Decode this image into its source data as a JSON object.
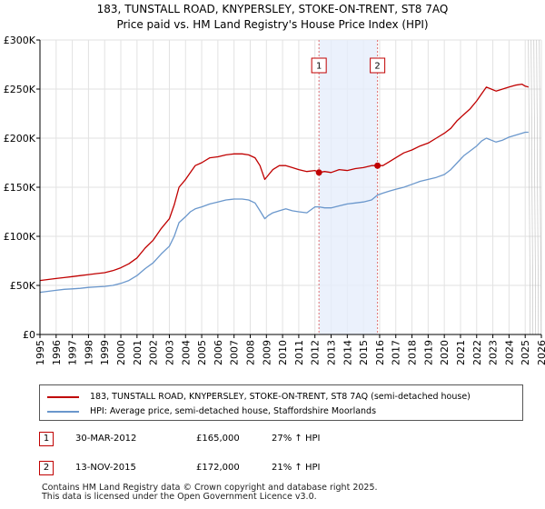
{
  "title": {
    "line1": "183, TUNSTALL ROAD, KNYPERSLEY, STOKE-ON-TRENT, ST8 7AQ",
    "line2": "Price paid vs. HM Land Registry's House Price Index (HPI)"
  },
  "chart_data": {
    "type": "line",
    "xlim": [
      1995,
      2026
    ],
    "ylim": [
      0,
      300000
    ],
    "yticks": [
      0,
      50000,
      100000,
      150000,
      200000,
      250000,
      300000
    ],
    "ytick_labels": [
      "£0",
      "£50K",
      "£100K",
      "£150K",
      "£200K",
      "£250K",
      "£300K"
    ],
    "xticks": [
      1995,
      1996,
      1997,
      1998,
      1999,
      2000,
      2001,
      2002,
      2003,
      2004,
      2005,
      2006,
      2007,
      2008,
      2009,
      2010,
      2011,
      2012,
      2013,
      2014,
      2015,
      2016,
      2017,
      2018,
      2019,
      2020,
      2021,
      2022,
      2023,
      2024,
      2025,
      2026
    ],
    "grid": true,
    "shaded_region": {
      "from": 2012.25,
      "to": 2015.87
    },
    "data_end": 2025.2,
    "series": [
      {
        "name": "183, TUNSTALL ROAD, KNYPERSLEY, STOKE-ON-TRENT, ST8 7AQ (semi-detached house)",
        "color": "#c00000",
        "x": [
          1995,
          1995.5,
          1996,
          1996.5,
          1997,
          1997.5,
          1998,
          1998.5,
          1999,
          1999.5,
          2000,
          2000.5,
          2001,
          2001.5,
          2002,
          2002.5,
          2003,
          2003.3,
          2003.6,
          2004,
          2004.3,
          2004.6,
          2005,
          2005.5,
          2006,
          2006.5,
          2007,
          2007.5,
          2007.9,
          2008.3,
          2008.6,
          2008.9,
          2009.1,
          2009.4,
          2009.8,
          2010.2,
          2010.6,
          2011,
          2011.5,
          2012,
          2012.25,
          2012.6,
          2013,
          2013.5,
          2014,
          2014.5,
          2015,
          2015.5,
          2015.87,
          2016.2,
          2016.6,
          2017,
          2017.5,
          2018,
          2018.5,
          2019,
          2019.5,
          2020,
          2020.4,
          2020.8,
          2021.2,
          2021.6,
          2022,
          2022.3,
          2022.6,
          2022.9,
          2023.2,
          2023.6,
          2024,
          2024.4,
          2024.8,
          2025,
          2025.2
        ],
        "y": [
          55000,
          56000,
          57000,
          58000,
          59000,
          60000,
          61000,
          62000,
          63000,
          65000,
          68000,
          72000,
          78000,
          88000,
          96000,
          108000,
          118000,
          132000,
          150000,
          158000,
          165000,
          172000,
          175000,
          180000,
          181000,
          183000,
          184000,
          184000,
          183000,
          180000,
          172000,
          158000,
          162000,
          168000,
          172000,
          172000,
          170000,
          168000,
          166000,
          167000,
          165000,
          166000,
          165000,
          168000,
          167000,
          169000,
          170000,
          172000,
          172000,
          172000,
          176000,
          180000,
          185000,
          188000,
          192000,
          195000,
          200000,
          205000,
          210000,
          218000,
          224000,
          230000,
          238000,
          245000,
          252000,
          250000,
          248000,
          250000,
          252000,
          254000,
          255000,
          253000,
          252000
        ]
      },
      {
        "name": "HPI: Average price, semi-detached house, Staffordshire Moorlands",
        "color": "#6a97cc",
        "x": [
          1995,
          1995.5,
          1996,
          1996.5,
          1997,
          1997.5,
          1998,
          1998.5,
          1999,
          1999.5,
          2000,
          2000.5,
          2001,
          2001.5,
          2002,
          2002.5,
          2003,
          2003.3,
          2003.6,
          2004,
          2004.3,
          2004.6,
          2005,
          2005.5,
          2006,
          2006.5,
          2007,
          2007.5,
          2007.9,
          2008.3,
          2008.6,
          2008.9,
          2009.1,
          2009.4,
          2009.8,
          2010.2,
          2010.6,
          2011,
          2011.5,
          2012,
          2012.25,
          2012.6,
          2013,
          2013.5,
          2014,
          2014.5,
          2015,
          2015.5,
          2015.87,
          2016.2,
          2016.6,
          2017,
          2017.5,
          2018,
          2018.5,
          2019,
          2019.5,
          2020,
          2020.4,
          2020.8,
          2021.2,
          2021.6,
          2022,
          2022.3,
          2022.6,
          2022.9,
          2023.2,
          2023.6,
          2024,
          2024.4,
          2024.8,
          2025,
          2025.2
        ],
        "y": [
          43000,
          44000,
          45000,
          46000,
          46500,
          47000,
          48000,
          48500,
          49000,
          50000,
          52000,
          55000,
          60000,
          67000,
          73000,
          82000,
          90000,
          100000,
          114000,
          120000,
          125000,
          128000,
          130000,
          133000,
          135000,
          137000,
          138000,
          138000,
          137000,
          134000,
          126000,
          118000,
          121000,
          124000,
          126000,
          128000,
          126000,
          125000,
          124000,
          130000,
          130000,
          129000,
          129000,
          131000,
          133000,
          134000,
          135000,
          137000,
          142000,
          144000,
          146000,
          148000,
          150000,
          153000,
          156000,
          158000,
          160000,
          163000,
          168000,
          175000,
          182000,
          187000,
          192000,
          197000,
          200000,
          198000,
          196000,
          198000,
          201000,
          203000,
          205000,
          206000,
          206000
        ]
      }
    ],
    "markers": [
      {
        "label": "1",
        "x": 2012.25,
        "y": 165000
      },
      {
        "label": "2",
        "x": 2015.87,
        "y": 172000
      }
    ]
  },
  "legend": [
    {
      "label": "183, TUNSTALL ROAD, KNYPERSLEY, STOKE-ON-TRENT, ST8 7AQ (semi-detached house)",
      "color": "#c00000"
    },
    {
      "label": "HPI: Average price, semi-detached house, Staffordshire Moorlands",
      "color": "#6a97cc"
    }
  ],
  "transactions": [
    {
      "num": "1",
      "date": "30-MAR-2012",
      "price": "£165,000",
      "hpi": "27% ↑ HPI"
    },
    {
      "num": "2",
      "date": "13-NOV-2015",
      "price": "£172,000",
      "hpi": "21% ↑ HPI"
    }
  ],
  "footer": {
    "line1": "Contains HM Land Registry data © Crown copyright and database right 2025.",
    "line2": "This data is licensed under the Open Government Licence v3.0."
  }
}
